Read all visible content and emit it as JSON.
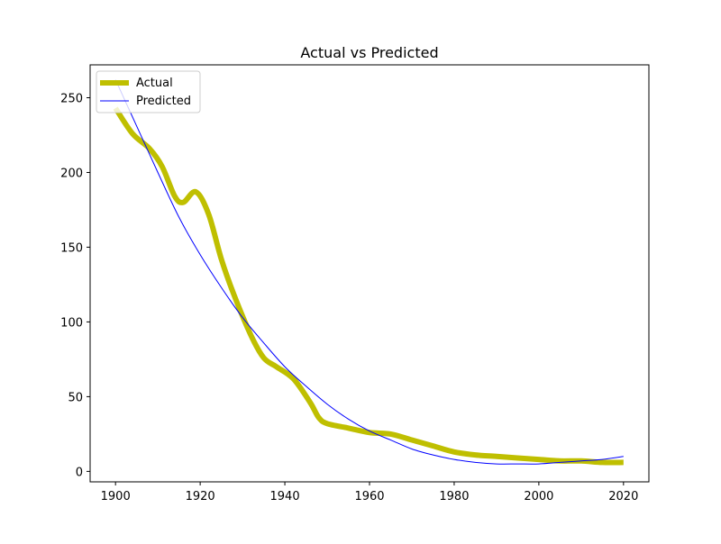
{
  "chart_data": {
    "type": "line",
    "title": "Actual vs Predicted",
    "xlabel": "",
    "ylabel": "",
    "xlim": [
      1894,
      2026
    ],
    "ylim": [
      -7,
      272
    ],
    "xticks": [
      1900,
      1920,
      1940,
      1960,
      1980,
      2000,
      2020
    ],
    "yticks": [
      0,
      50,
      100,
      150,
      200,
      250
    ],
    "legend_position": "upper-left",
    "series": [
      {
        "name": "Actual",
        "color": "#bfbf00",
        "style": "thick-line",
        "x": [
          1900,
          1904,
          1908,
          1911,
          1914,
          1916,
          1919,
          1922,
          1925,
          1928,
          1932,
          1935,
          1938,
          1942,
          1946,
          1948,
          1950,
          1955,
          1960,
          1965,
          1970,
          1975,
          1980,
          1985,
          1990,
          1995,
          2000,
          2005,
          2010,
          2015,
          2020
        ],
        "y": [
          243,
          226,
          216,
          204,
          184,
          180,
          187,
          172,
          142,
          118,
          91,
          76,
          70,
          62,
          46,
          36,
          32,
          29,
          26,
          25,
          21,
          17,
          13,
          11,
          10,
          9,
          8,
          7,
          7,
          6,
          6
        ]
      },
      {
        "name": "Predicted",
        "color": "#0000ff",
        "style": "thin-line",
        "x": [
          1900,
          1905,
          1910,
          1915,
          1920,
          1925,
          1930,
          1935,
          1940,
          1945,
          1950,
          1955,
          1960,
          1965,
          1970,
          1975,
          1980,
          1985,
          1990,
          1995,
          2000,
          2005,
          2010,
          2015,
          2020
        ],
        "y": [
          262,
          231,
          200,
          170,
          145,
          123,
          103,
          86,
          70,
          57,
          45,
          35,
          27,
          21,
          15,
          11,
          8,
          6,
          5,
          5,
          5,
          6,
          7,
          8,
          10
        ]
      }
    ]
  }
}
